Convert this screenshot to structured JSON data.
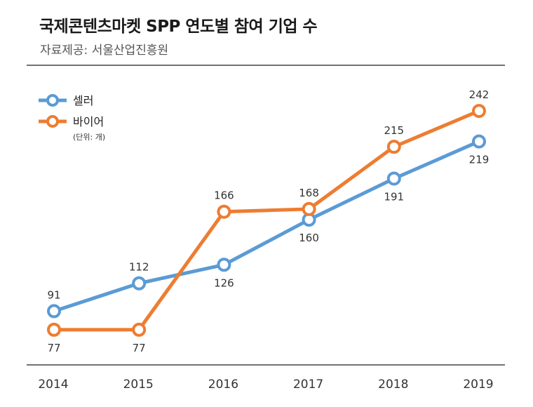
{
  "title": "국제콘텐츠마켓 SPP 연도별 참여 기업 수",
  "source": "자료제공: 서울산업진흥원",
  "unit": "(단위: 개)",
  "colors": {
    "seller": "#5b9bd5",
    "buyer": "#ed7d31",
    "axis": "#444444"
  },
  "chart_data": {
    "type": "line",
    "title": "국제콘텐츠마켓 SPP 연도별 참여 기업 수",
    "xlabel": "",
    "ylabel": "",
    "unit": "(단위: 개)",
    "categories": [
      "2014",
      "2015",
      "2016",
      "2017",
      "2018",
      "2019"
    ],
    "ylim": [
      55,
      270
    ],
    "grid": false,
    "legend_position": "top-left",
    "series": [
      {
        "name": "셀러",
        "color": "#5b9bd5",
        "values": [
          91,
          112,
          126,
          160,
          191,
          219
        ],
        "label_position": [
          "above",
          "above",
          "below",
          "below",
          "below",
          "below"
        ]
      },
      {
        "name": "바이어",
        "color": "#ed7d31",
        "values": [
          77,
          77,
          166,
          168,
          215,
          242
        ],
        "label_position": [
          "below",
          "below",
          "above",
          "above",
          "above",
          "above"
        ]
      }
    ]
  }
}
